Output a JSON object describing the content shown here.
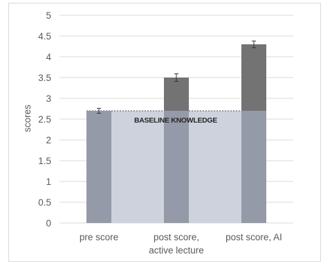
{
  "chart_data": {
    "type": "bar",
    "categories": [
      [
        "pre score"
      ],
      [
        "post score,",
        "active lecture"
      ],
      [
        "post score, AI"
      ]
    ],
    "values": [
      2.7,
      3.5,
      4.3
    ],
    "error": [
      0.06,
      0.09,
      0.08
    ],
    "ylabel": "scores",
    "ylim": [
      0,
      5
    ],
    "yticks": [
      "0",
      "0.5",
      "1",
      "1.5",
      "2",
      "2.5",
      "3",
      "3.5",
      "4",
      "4.5",
      "5"
    ],
    "grid": true,
    "baseline": {
      "label": "BASELINE KNOWLEDGE",
      "value": 2.7
    },
    "colors": {
      "pre_bar": "#959aa8",
      "post_bar_upper": "#737373",
      "post_bar_lower": "#959aa8",
      "baseline_band": "#cdd2dd",
      "grid": "#d9d9d9",
      "axis_text": "#595959"
    }
  }
}
